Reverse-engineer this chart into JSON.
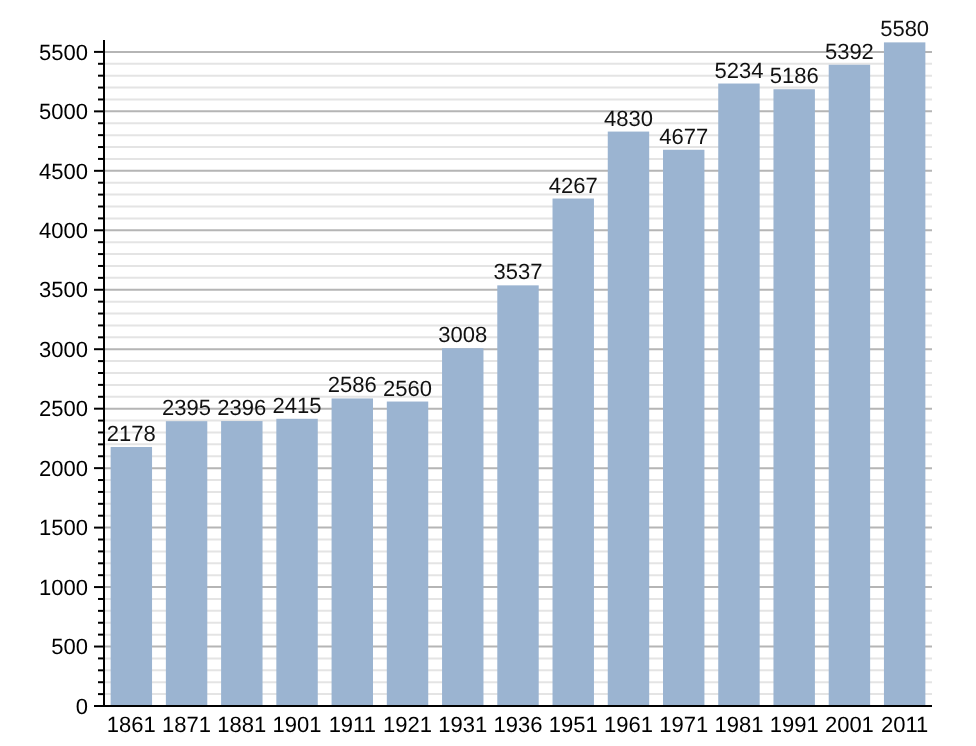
{
  "chart_data": {
    "type": "bar",
    "categories": [
      "1861",
      "1871",
      "1881",
      "1901",
      "1911",
      "1921",
      "1931",
      "1936",
      "1951",
      "1961",
      "1971",
      "1981",
      "1991",
      "2001",
      "2011"
    ],
    "values": [
      2178,
      2395,
      2396,
      2415,
      2586,
      2560,
      3008,
      3537,
      4267,
      4830,
      4677,
      5234,
      5186,
      5392,
      5580
    ],
    "color": "#9bb4d1",
    "ylim": [
      0,
      5600
    ],
    "yticks": [
      0,
      {
        "value": 100,
        "label": null
      },
      {
        "value": 200,
        "label": null
      },
      {
        "value": 300,
        "label": null
      },
      {
        "value": 400,
        "label": null
      },
      500,
      {
        "value": 600,
        "label": null
      },
      {
        "value": 700,
        "label": null
      },
      {
        "value": 800,
        "label": null
      },
      {
        "value": 900,
        "label": null
      },
      1000,
      {
        "value": 1100,
        "label": null
      },
      {
        "value": 1200,
        "label": null
      },
      {
        "value": 1300,
        "label": null
      },
      {
        "value": 1400,
        "label": null
      },
      1500,
      {
        "value": 1600,
        "label": null
      },
      {
        "value": 1700,
        "label": null
      },
      {
        "value": 1800,
        "label": null
      },
      {
        "value": 1900,
        "label": null
      },
      2000,
      {
        "value": 2100,
        "label": null
      },
      {
        "value": 2200,
        "label": null
      },
      {
        "value": 2300,
        "label": null
      },
      {
        "value": 2400,
        "label": null
      },
      2500,
      {
        "value": 2600,
        "label": null
      },
      {
        "value": 2700,
        "label": null
      },
      {
        "value": 2800,
        "label": null
      },
      {
        "value": 2900,
        "label": null
      },
      3000,
      {
        "value": 3100,
        "label": null
      },
      {
        "value": 3200,
        "label": null
      },
      {
        "value": 3300,
        "label": null
      },
      {
        "value": 3400,
        "label": null
      },
      3500,
      {
        "value": 3600,
        "label": null
      },
      {
        "value": 3700,
        "label": null
      },
      {
        "value": 3800,
        "label": null
      },
      {
        "value": 3900,
        "label": null
      },
      4000,
      {
        "value": 4100,
        "label": null
      },
      {
        "value": 4200,
        "label": null
      },
      {
        "value": 4300,
        "label": null
      },
      {
        "value": 4400,
        "label": null
      },
      4500,
      {
        "value": 4600,
        "label": null
      },
      {
        "value": 4700,
        "label": null
      },
      {
        "value": 4800,
        "label": null
      },
      {
        "value": 4900,
        "label": null
      },
      5000,
      {
        "value": 5100,
        "label": null
      },
      {
        "value": 5200,
        "label": null
      },
      {
        "value": 5300,
        "label": null
      },
      {
        "value": 5400,
        "label": null
      },
      5500
    ],
    "grid": "y",
    "data_labels": true
  }
}
